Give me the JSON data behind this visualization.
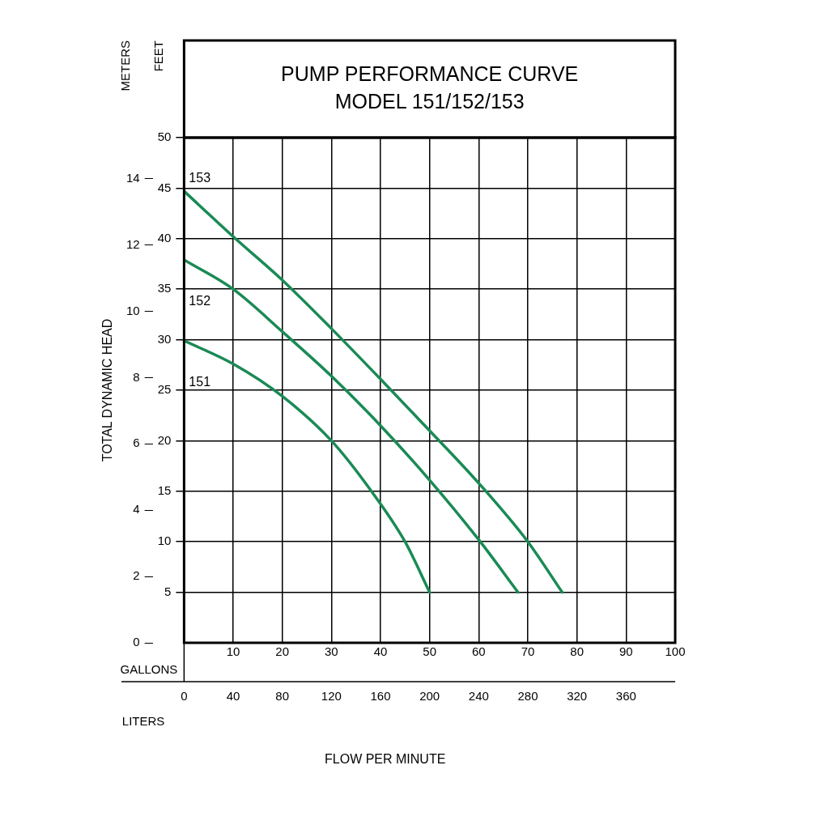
{
  "chart_data": {
    "type": "line",
    "title": "PUMP PERFORMANCE CURVE\nMODEL 151/152/153",
    "xlabel": "GALLONS",
    "x2label": "LITERS",
    "ylabel": "FEET",
    "y2label": "METERS",
    "annotations": [
      "TOTAL DYNAMIC HEAD",
      "FLOW PER MINUTE"
    ],
    "series": [
      {
        "name": "153",
        "color": "#1a8a55",
        "x": [
          0,
          10,
          20,
          30,
          40,
          50,
          60,
          70,
          77
        ],
        "values": [
          44.7,
          40.2,
          35.9,
          31.1,
          26.1,
          21,
          15.8,
          10,
          5
        ]
      },
      {
        "name": "152",
        "color": "#1a8a55",
        "x": [
          0,
          10,
          20,
          30,
          40,
          50,
          60,
          68
        ],
        "values": [
          37.9,
          35,
          30.8,
          26.4,
          21.5,
          16.1,
          10.2,
          5
        ]
      },
      {
        "name": "151",
        "color": "#1a8a55",
        "x": [
          0,
          10,
          20,
          30,
          38,
          45,
          50
        ],
        "values": [
          29.9,
          27.6,
          24.4,
          20,
          15.1,
          10,
          5
        ]
      }
    ],
    "xlim": [
      0,
      100
    ],
    "xticks": [
      10,
      20,
      30,
      40,
      50,
      60,
      70,
      80,
      90,
      100
    ],
    "x2lim": [
      0,
      400
    ],
    "x2ticks": [
      0,
      40,
      80,
      120,
      160,
      200,
      240,
      280,
      320,
      360
    ],
    "ylim": [
      0,
      50
    ],
    "yticks": [
      5,
      10,
      15,
      20,
      25,
      30,
      35,
      40,
      45,
      50
    ],
    "y2lim": [
      0,
      15.24
    ],
    "y2ticks": [
      0,
      2,
      4,
      6,
      8,
      10,
      12,
      14
    ],
    "grid": true,
    "legend": false,
    "marker": "none",
    "line_style": "solid"
  }
}
